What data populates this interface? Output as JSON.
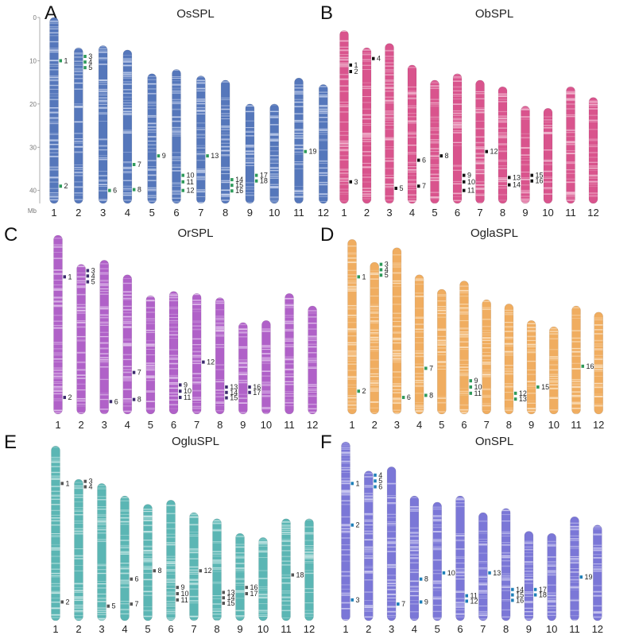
{
  "panels": [
    {
      "label": "A",
      "title": "OsSPL",
      "color": "#5577bb",
      "stripe": "#c7d3ee",
      "marker": "#2e9a5a",
      "scale": {
        "ticks": [
          "0",
          "10",
          "20",
          "30",
          "40"
        ],
        "unit": "Mb"
      },
      "chromosomes": [
        {
          "label": "1",
          "length": 43,
          "genes": [
            {
              "label": "1",
              "pos": 10
            },
            {
              "label": "2",
              "pos": 39
            }
          ]
        },
        {
          "label": "2",
          "length": 36,
          "genes": [
            {
              "label": "3",
              "pos": 9
            },
            {
              "label": "4",
              "pos": 10.3
            },
            {
              "label": "5",
              "pos": 11.6
            }
          ]
        },
        {
          "label": "3",
          "length": 36.5,
          "genes": [
            {
              "label": "6",
              "pos": 40
            }
          ]
        },
        {
          "label": "4",
          "length": 35.5,
          "genes": [
            {
              "label": "7",
              "pos": 34
            },
            {
              "label": "8",
              "pos": 39.8
            }
          ]
        },
        {
          "label": "5",
          "length": 30,
          "genes": [
            {
              "label": "9",
              "pos": 32
            }
          ]
        },
        {
          "label": "6",
          "length": 31,
          "genes": [
            {
              "label": "10",
              "pos": 36.5
            },
            {
              "label": "11",
              "pos": 38
            },
            {
              "label": "12",
              "pos": 40
            }
          ]
        },
        {
          "label": "7",
          "length": 29.5,
          "genes": [
            {
              "label": "13",
              "pos": 32
            }
          ]
        },
        {
          "label": "8",
          "length": 28.5,
          "genes": [
            {
              "label": "14",
              "pos": 37.5
            },
            {
              "label": "15",
              "pos": 38.8
            },
            {
              "label": "16",
              "pos": 40.1
            }
          ]
        },
        {
          "label": "9",
          "length": 23,
          "genes": [
            {
              "label": "17",
              "pos": 36.5
            },
            {
              "label": "18",
              "pos": 37.8
            }
          ]
        },
        {
          "label": "10",
          "length": 23,
          "genes": []
        },
        {
          "label": "11",
          "length": 29,
          "genes": [
            {
              "label": "19",
              "pos": 31
            }
          ]
        },
        {
          "label": "12",
          "length": 27.5,
          "genes": []
        }
      ]
    },
    {
      "label": "B",
      "title": "ObSPL",
      "color": "#d9548d",
      "stripe": "#f2b9d1",
      "marker": "#111111",
      "scale": null,
      "chromosomes": [
        {
          "label": "1",
          "length": 40,
          "genes": [
            {
              "label": "1",
              "pos": 11
            },
            {
              "label": "2",
              "pos": 12.5
            },
            {
              "label": "3",
              "pos": 38
            }
          ]
        },
        {
          "label": "2",
          "length": 36,
          "genes": [
            {
              "label": "4",
              "pos": 9.5
            }
          ]
        },
        {
          "label": "3",
          "length": 37,
          "genes": [
            {
              "label": "5",
              "pos": 39.5
            }
          ]
        },
        {
          "label": "4",
          "length": 32,
          "genes": [
            {
              "label": "6",
              "pos": 33
            },
            {
              "label": "7",
              "pos": 39
            }
          ]
        },
        {
          "label": "5",
          "length": 28.5,
          "genes": [
            {
              "label": "8",
              "pos": 32
            }
          ]
        },
        {
          "label": "6",
          "length": 30,
          "genes": [
            {
              "label": "9",
              "pos": 36.5
            },
            {
              "label": "10",
              "pos": 38
            },
            {
              "label": "11",
              "pos": 40
            }
          ]
        },
        {
          "label": "7",
          "length": 28.5,
          "genes": [
            {
              "label": "12",
              "pos": 31
            }
          ]
        },
        {
          "label": "8",
          "length": 27,
          "genes": [
            {
              "label": "13",
              "pos": 37
            },
            {
              "label": "14",
              "pos": 38.7
            }
          ]
        },
        {
          "label": "9",
          "length": 22.5,
          "genes": [
            {
              "label": "15",
              "pos": 36.5
            },
            {
              "label": "16",
              "pos": 37.8
            }
          ]
        },
        {
          "label": "10",
          "length": 22,
          "genes": []
        },
        {
          "label": "11",
          "length": 27,
          "genes": []
        },
        {
          "label": "12",
          "length": 24.5,
          "genes": []
        }
      ]
    },
    {
      "label": "C",
      "title": "OrSPL",
      "color": "#b061c8",
      "stripe": "#e3c3ee",
      "marker": "#3b2b6e",
      "scale": null,
      "chromosomes": [
        {
          "label": "1",
          "length": 43,
          "genes": [
            {
              "label": "1",
              "pos": 10
            },
            {
              "label": "2",
              "pos": 39
            }
          ]
        },
        {
          "label": "2",
          "length": 36,
          "genes": [
            {
              "label": "3",
              "pos": 8.5
            },
            {
              "label": "4",
              "pos": 9.8
            },
            {
              "label": "5",
              "pos": 11.2
            }
          ]
        },
        {
          "label": "3",
          "length": 37,
          "genes": [
            {
              "label": "6",
              "pos": 40
            }
          ]
        },
        {
          "label": "4",
          "length": 33.5,
          "genes": [
            {
              "label": "7",
              "pos": 33
            },
            {
              "label": "8",
              "pos": 39.5
            }
          ]
        },
        {
          "label": "5",
          "length": 28.5,
          "genes": []
        },
        {
          "label": "6",
          "length": 29.5,
          "genes": [
            {
              "label": "9",
              "pos": 36
            },
            {
              "label": "10",
              "pos": 37.5
            },
            {
              "label": "11",
              "pos": 39
            }
          ]
        },
        {
          "label": "7",
          "length": 29,
          "genes": [
            {
              "label": "12",
              "pos": 30.5
            }
          ]
        },
        {
          "label": "8",
          "length": 28,
          "genes": [
            {
              "label": "13",
              "pos": 36.5
            },
            {
              "label": "14",
              "pos": 37.8
            },
            {
              "label": "15",
              "pos": 39.1
            }
          ]
        },
        {
          "label": "9",
          "length": 22,
          "genes": [
            {
              "label": "16",
              "pos": 36.5
            },
            {
              "label": "17",
              "pos": 37.8
            }
          ]
        },
        {
          "label": "10",
          "length": 22.5,
          "genes": []
        },
        {
          "label": "11",
          "length": 29,
          "genes": []
        },
        {
          "label": "12",
          "length": 26,
          "genes": []
        }
      ]
    },
    {
      "label": "D",
      "title": "OglaSPL",
      "color": "#f0ad60",
      "stripe": "#fbe0bd",
      "marker": "#2e9a5a",
      "scale": null,
      "chromosomes": [
        {
          "label": "1",
          "length": 42,
          "genes": [
            {
              "label": "1",
              "pos": 10
            },
            {
              "label": "2",
              "pos": 37.5
            }
          ]
        },
        {
          "label": "2",
          "length": 36.5,
          "genes": [
            {
              "label": "3",
              "pos": 7
            },
            {
              "label": "4",
              "pos": 8.3
            },
            {
              "label": "5",
              "pos": 9.6
            }
          ]
        },
        {
          "label": "3",
          "length": 40,
          "genes": [
            {
              "label": "6",
              "pos": 39
            }
          ]
        },
        {
          "label": "4",
          "length": 33.5,
          "genes": [
            {
              "label": "7",
              "pos": 32
            },
            {
              "label": "8",
              "pos": 38.5
            }
          ]
        },
        {
          "label": "5",
          "length": 30,
          "genes": []
        },
        {
          "label": "6",
          "length": 32,
          "genes": [
            {
              "label": "9",
              "pos": 35
            },
            {
              "label": "10",
              "pos": 36.5
            },
            {
              "label": "11",
              "pos": 38
            }
          ]
        },
        {
          "label": "7",
          "length": 27.5,
          "genes": []
        },
        {
          "label": "8",
          "length": 26.5,
          "genes": [
            {
              "label": "12",
              "pos": 38
            },
            {
              "label": "13",
              "pos": 39.4
            }
          ]
        },
        {
          "label": "9",
          "length": 22.5,
          "genes": [
            {
              "label": "15",
              "pos": 36.5
            }
          ]
        },
        {
          "label": "10",
          "length": 21,
          "genes": []
        },
        {
          "label": "11",
          "length": 26,
          "genes": [
            {
              "label": "16",
              "pos": 31.5
            }
          ]
        },
        {
          "label": "12",
          "length": 24.5,
          "genes": []
        }
      ]
    },
    {
      "label": "E",
      "title": "OgluSPL",
      "color": "#5bb6b4",
      "stripe": "#c6e7e5",
      "marker": "#555555",
      "scale": null,
      "chromosomes": [
        {
          "label": "1",
          "length": 42,
          "genes": [
            {
              "label": "1",
              "pos": 10
            },
            {
              "label": "2",
              "pos": 38.5
            }
          ]
        },
        {
          "label": "2",
          "length": 34,
          "genes": [
            {
              "label": "3",
              "pos": 9.5
            },
            {
              "label": "4",
              "pos": 10.8
            }
          ]
        },
        {
          "label": "3",
          "length": 33,
          "genes": [
            {
              "label": "5",
              "pos": 39.5
            }
          ]
        },
        {
          "label": "4",
          "length": 30,
          "genes": [
            {
              "label": "6",
              "pos": 33
            },
            {
              "label": "7",
              "pos": 39
            }
          ]
        },
        {
          "label": "5",
          "length": 28,
          "genes": [
            {
              "label": "8",
              "pos": 31
            }
          ]
        },
        {
          "label": "6",
          "length": 29,
          "genes": [
            {
              "label": "9",
              "pos": 35
            },
            {
              "label": "10",
              "pos": 36.5
            },
            {
              "label": "11",
              "pos": 38
            }
          ]
        },
        {
          "label": "7",
          "length": 26,
          "genes": [
            {
              "label": "12",
              "pos": 31
            }
          ]
        },
        {
          "label": "8",
          "length": 24.5,
          "genes": [
            {
              "label": "13",
              "pos": 36.2
            },
            {
              "label": "14",
              "pos": 37.5
            },
            {
              "label": "15",
              "pos": 38.8
            }
          ]
        },
        {
          "label": "9",
          "length": 21,
          "genes": [
            {
              "label": "16",
              "pos": 35
            },
            {
              "label": "17",
              "pos": 36.5
            }
          ]
        },
        {
          "label": "10",
          "length": 20,
          "genes": []
        },
        {
          "label": "11",
          "length": 24.5,
          "genes": [
            {
              "label": "18",
              "pos": 32
            }
          ]
        },
        {
          "label": "12",
          "length": 24.5,
          "genes": []
        }
      ]
    },
    {
      "label": "F",
      "title": "OnSPL",
      "color": "#7b77d7",
      "stripe": "#cfcdf2",
      "marker": "#1e7fb8",
      "scale": null,
      "chromosomes": [
        {
          "label": "1",
          "length": 43,
          "genes": [
            {
              "label": "1",
              "pos": 10
            },
            {
              "label": "2",
              "pos": 20
            },
            {
              "label": "3",
              "pos": 38
            }
          ]
        },
        {
          "label": "2",
          "length": 36,
          "genes": [
            {
              "label": "4",
              "pos": 8
            },
            {
              "label": "5",
              "pos": 9.4
            },
            {
              "label": "6",
              "pos": 10.8
            }
          ]
        },
        {
          "label": "3",
          "length": 37,
          "genes": [
            {
              "label": "7",
              "pos": 39
            }
          ]
        },
        {
          "label": "4",
          "length": 30,
          "genes": [
            {
              "label": "8",
              "pos": 33
            },
            {
              "label": "9",
              "pos": 38.5
            }
          ]
        },
        {
          "label": "5",
          "length": 28.5,
          "genes": [
            {
              "label": "10",
              "pos": 31.5
            }
          ]
        },
        {
          "label": "6",
          "length": 30,
          "genes": [
            {
              "label": "11",
              "pos": 37
            },
            {
              "label": "12",
              "pos": 38.3
            }
          ]
        },
        {
          "label": "7",
          "length": 26,
          "genes": [
            {
              "label": "13",
              "pos": 31.5
            }
          ]
        },
        {
          "label": "8",
          "length": 27,
          "genes": [
            {
              "label": "14",
              "pos": 35.5
            },
            {
              "label": "15",
              "pos": 36.8
            },
            {
              "label": "16",
              "pos": 38.1
            }
          ]
        },
        {
          "label": "9",
          "length": 21.5,
          "genes": [
            {
              "label": "17",
              "pos": 35.5
            },
            {
              "label": "18",
              "pos": 36.8
            }
          ]
        },
        {
          "label": "10",
          "length": 21,
          "genes": []
        },
        {
          "label": "11",
          "length": 25,
          "genes": [
            {
              "label": "19",
              "pos": 32.5
            }
          ]
        },
        {
          "label": "12",
          "length": 23,
          "genes": []
        }
      ]
    }
  ]
}
